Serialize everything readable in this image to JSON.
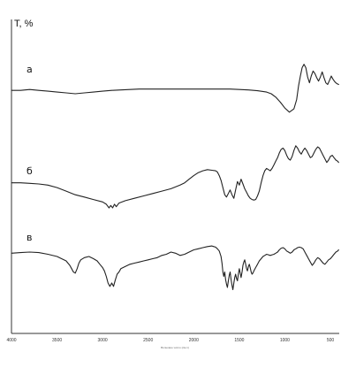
{
  "chart_data": {
    "type": "line",
    "title": "",
    "ylabel": "T, %",
    "xlabel": "Волновое число (см-1)",
    "x_reversed": true,
    "xlim": [
      4000,
      400
    ],
    "x_ticks": [
      "4000",
      "3500",
      "3000",
      "2500",
      "2000",
      "1500",
      "1000",
      "500"
    ],
    "x_tick_values": [
      4000,
      3500,
      3000,
      2500,
      2000,
      1500,
      1000,
      500
    ],
    "grid": false,
    "series": [
      {
        "name": "а",
        "x": [
          4000,
          3900,
          3800,
          3700,
          3600,
          3500,
          3400,
          3300,
          3200,
          3100,
          3000,
          2900,
          2800,
          2700,
          2600,
          2500,
          2400,
          2300,
          2200,
          2100,
          2000,
          1900,
          1800,
          1700,
          1600,
          1500,
          1400,
          1300,
          1200,
          1150,
          1100,
          1050,
          1000,
          950,
          900,
          870,
          850,
          830,
          810,
          790,
          770,
          750,
          730,
          710,
          690,
          670,
          650,
          630,
          610,
          590,
          570,
          550,
          530,
          510,
          490,
          470,
          450,
          430,
          410
        ],
        "y": [
          63,
          63,
          64,
          63,
          62,
          61,
          60,
          59,
          60,
          61,
          62,
          63,
          63.5,
          64,
          64.5,
          64.5,
          64.5,
          64.5,
          64.5,
          64.5,
          64.5,
          64.5,
          64.5,
          64.5,
          64.5,
          64,
          63.5,
          62.5,
          61,
          59,
          55,
          49,
          42,
          37,
          41,
          52,
          68,
          80,
          90,
          94,
          90,
          79,
          72,
          80,
          86,
          83,
          78,
          74,
          79,
          85,
          78,
          72,
          70,
          75,
          80,
          76,
          73,
          71,
          70
        ]
      },
      {
        "name": "б",
        "x": [
          4000,
          3900,
          3800,
          3700,
          3600,
          3500,
          3400,
          3300,
          3200,
          3100,
          3000,
          2960,
          2930,
          2910,
          2890,
          2870,
          2850,
          2820,
          2750,
          2650,
          2550,
          2450,
          2350,
          2250,
          2150,
          2100,
          2050,
          2000,
          1950,
          1900,
          1850,
          1800,
          1760,
          1740,
          1720,
          1700,
          1680,
          1660,
          1640,
          1620,
          1600,
          1580,
          1560,
          1540,
          1520,
          1500,
          1480,
          1460,
          1440,
          1420,
          1400,
          1380,
          1360,
          1340,
          1320,
          1300,
          1280,
          1260,
          1240,
          1220,
          1200,
          1180,
          1160,
          1140,
          1120,
          1100,
          1080,
          1060,
          1040,
          1020,
          1000,
          980,
          960,
          940,
          920,
          900,
          880,
          860,
          840,
          820,
          800,
          780,
          760,
          740,
          720,
          700,
          680,
          660,
          640,
          620,
          600,
          580,
          560,
          540,
          520,
          500,
          480,
          460,
          440,
          420,
          410
        ],
        "y": [
          41,
          41,
          40.5,
          40,
          39,
          37,
          34,
          31,
          29,
          27,
          25,
          23,
          20,
          22,
          20,
          23,
          21,
          24,
          26,
          28,
          30,
          32,
          34,
          36,
          39,
          41,
          44,
          47,
          49.5,
          51,
          52,
          51.5,
          51,
          50,
          47,
          43,
          37,
          31,
          29,
          32,
          35,
          31,
          28,
          35,
          42,
          39,
          44,
          40,
          36,
          33,
          30,
          28,
          27,
          26.5,
          27,
          30,
          34,
          41,
          47,
          51,
          53,
          52,
          51,
          53,
          56,
          59,
          62,
          66,
          69,
          70,
          68,
          64,
          61,
          60,
          63,
          68,
          72,
          70,
          67,
          65,
          68,
          70,
          68,
          65,
          62,
          63,
          66,
          69,
          71,
          70,
          67,
          64,
          61,
          58,
          60,
          63,
          64,
          62,
          60,
          59,
          58
        ]
      },
      {
        "name": "в",
        "x": [
          4000,
          3900,
          3800,
          3700,
          3600,
          3500,
          3450,
          3400,
          3380,
          3360,
          3340,
          3320,
          3300,
          3280,
          3260,
          3240,
          3200,
          3150,
          3100,
          3060,
          3030,
          3000,
          2980,
          2960,
          2940,
          2920,
          2900,
          2880,
          2860,
          2840,
          2820,
          2800,
          2750,
          2700,
          2650,
          2600,
          2550,
          2500,
          2450,
          2400,
          2350,
          2300,
          2250,
          2200,
          2150,
          2100,
          2050,
          2000,
          1950,
          1900,
          1850,
          1800,
          1780,
          1760,
          1740,
          1720,
          1700,
          1690,
          1680,
          1670,
          1660,
          1650,
          1640,
          1630,
          1620,
          1610,
          1600,
          1590,
          1580,
          1570,
          1560,
          1550,
          1540,
          1530,
          1520,
          1510,
          1500,
          1490,
          1480,
          1470,
          1460,
          1450,
          1440,
          1430,
          1420,
          1410,
          1400,
          1390,
          1380,
          1370,
          1360,
          1350,
          1340,
          1320,
          1300,
          1280,
          1260,
          1240,
          1220,
          1200,
          1180,
          1160,
          1140,
          1120,
          1100,
          1080,
          1060,
          1040,
          1020,
          1000,
          980,
          960,
          940,
          920,
          900,
          880,
          860,
          840,
          820,
          800,
          780,
          760,
          740,
          720,
          700,
          680,
          660,
          640,
          620,
          600,
          580,
          560,
          540,
          520,
          500,
          480,
          460,
          440,
          420,
          410
        ],
        "y": [
          19,
          19.5,
          20,
          19.5,
          18,
          16,
          14,
          12,
          10,
          8,
          5,
          2,
          1,
          5,
          10,
          13,
          15,
          16,
          14,
          12,
          9,
          6,
          3,
          -2,
          -8,
          -11,
          -8,
          -11,
          -5,
          0,
          2,
          5,
          7,
          9,
          10,
          11,
          12,
          13,
          14,
          15,
          17,
          18,
          20,
          19,
          17,
          18,
          20,
          22,
          23,
          24,
          25,
          25.5,
          25,
          24.5,
          23,
          21,
          16,
          10,
          2,
          -2,
          2,
          -5,
          -9,
          -12,
          -6,
          -1,
          2,
          -5,
          -10,
          -14,
          -8,
          -3,
          0,
          -4,
          -6,
          0,
          5,
          1,
          -3,
          2,
          8,
          11,
          13,
          9,
          5,
          3,
          7,
          9,
          6,
          2,
          0,
          1,
          3,
          6,
          9,
          12,
          14,
          16,
          17,
          18,
          17.5,
          17,
          17.5,
          18,
          19,
          20,
          22,
          23.5,
          24,
          23,
          21,
          20,
          19,
          20,
          22,
          23,
          24,
          24.5,
          24,
          23,
          20,
          17,
          14,
          11,
          8,
          10,
          13,
          15,
          14,
          12,
          10,
          9,
          11,
          13,
          14,
          16,
          18,
          20,
          21,
          22
        ]
      }
    ]
  }
}
